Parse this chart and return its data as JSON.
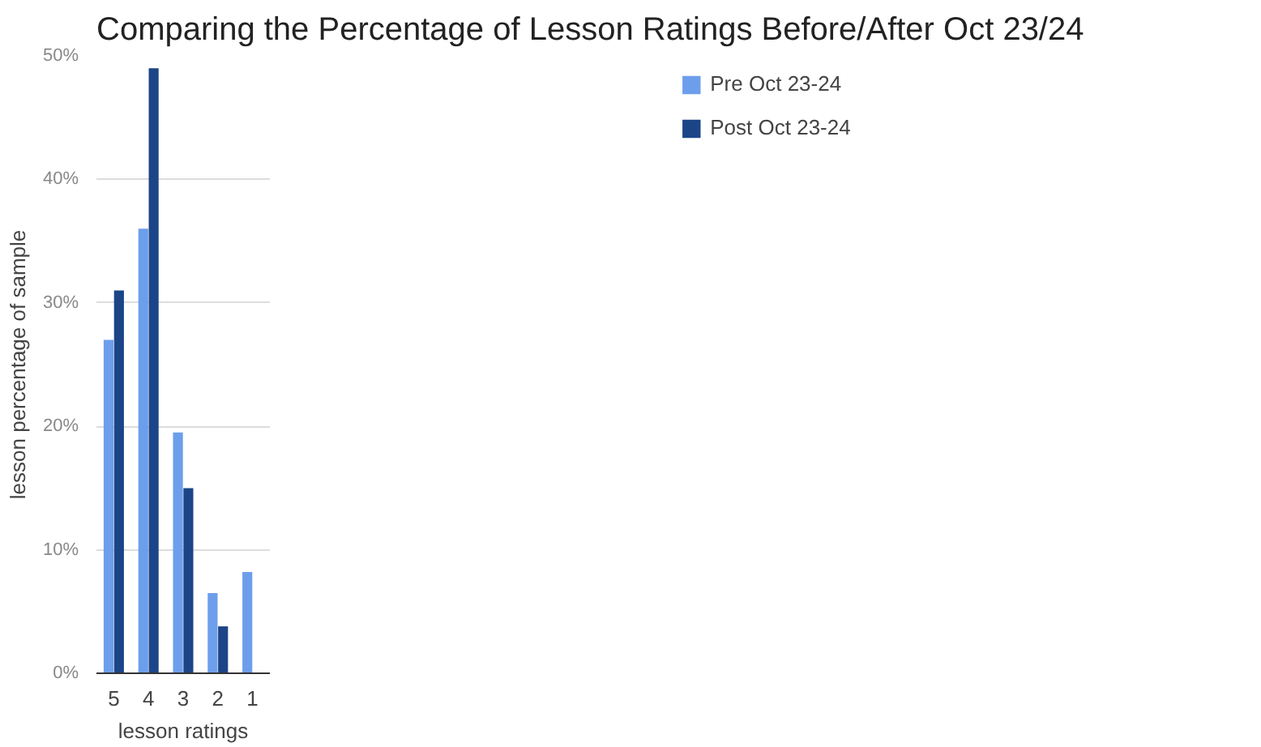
{
  "chart_data": {
    "type": "bar",
    "title": "Comparing the Percentage of Lesson Ratings Before/After Oct 23/24",
    "xlabel": "lesson ratings",
    "ylabel": "lesson percentage of sample",
    "categories": [
      "5",
      "4",
      "3",
      "2",
      "1"
    ],
    "series": [
      {
        "name": "Pre Oct 23-24",
        "color": "#6d9eeb",
        "values": [
          27,
          36,
          19.5,
          6.5,
          8.2
        ]
      },
      {
        "name": "Post Oct 23-24",
        "color": "#1c4587",
        "values": [
          31,
          49,
          15,
          3.8,
          0
        ]
      }
    ],
    "ylim": [
      0,
      50
    ],
    "yticks": [
      {
        "value": 0,
        "label": "0%"
      },
      {
        "value": 10,
        "label": "10%"
      },
      {
        "value": 20,
        "label": "20%"
      },
      {
        "value": 30,
        "label": "30%"
      },
      {
        "value": 40,
        "label": "40%"
      },
      {
        "value": 50,
        "label": "50%"
      }
    ],
    "grid": "y",
    "legend": "top right"
  }
}
